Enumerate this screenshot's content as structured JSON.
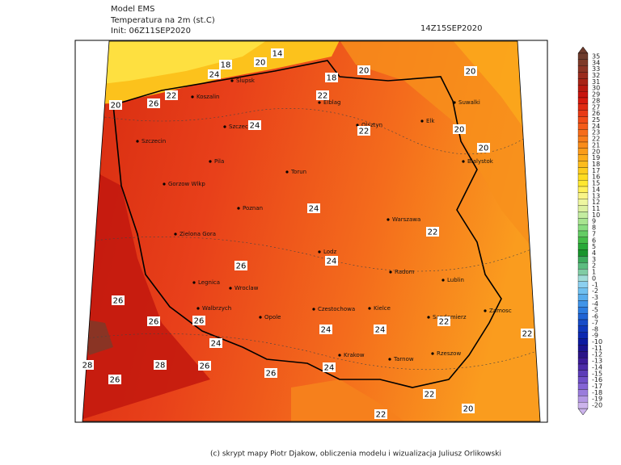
{
  "header": {
    "model": "Model EMS",
    "variable": "Temperatura na 2m (st.C)",
    "init": "Init: 06Z11SEP2020",
    "valid": "14Z15SEP2020"
  },
  "cities": [
    "Slupsk",
    "Koszalin",
    "Elblag",
    "Olsztyn",
    "Elk",
    "Suwalki",
    "Szczecinek",
    "Szczecin",
    "Bialystok",
    "Pila",
    "Torun",
    "Gorzow Wlkp",
    "Poznan",
    "Warszawa",
    "Zielona Gora",
    "Lodz",
    "Radom",
    "Lublin",
    "Legnica",
    "Wroclaw",
    "Walbrzych",
    "Czestochowa",
    "Kielce",
    "Sandomierz",
    "Zamosc",
    "Opole",
    "Krakow",
    "Tarnow",
    "Rzeszow"
  ],
  "contour_labels": [
    14,
    18,
    20,
    24,
    18,
    20,
    20,
    22,
    26,
    20,
    22,
    24,
    22,
    20,
    20,
    24,
    22,
    26,
    24,
    26,
    26,
    26,
    22,
    24,
    24,
    22,
    24,
    26,
    28,
    28,
    26,
    26,
    24,
    22,
    20,
    22
  ],
  "colorbar": {
    "levels": [
      35,
      34,
      33,
      32,
      31,
      30,
      29,
      28,
      27,
      26,
      25,
      24,
      23,
      22,
      21,
      20,
      19,
      18,
      17,
      16,
      15,
      14,
      13,
      12,
      11,
      10,
      9,
      8,
      7,
      6,
      5,
      4,
      3,
      2,
      1,
      0,
      -1,
      -2,
      -3,
      -4,
      -5,
      -6,
      -7,
      -8,
      -9,
      -10,
      -11,
      -12,
      -13,
      -14,
      -15,
      -16,
      -17,
      -18,
      -19,
      -20
    ],
    "colors": [
      "#6e3b2c",
      "#7e3a28",
      "#8c3424",
      "#9a2c1e",
      "#a82416",
      "#b81a10",
      "#c8140e",
      "#d61a0e",
      "#e02a12",
      "#e83a16",
      "#f04c18",
      "#f45c1a",
      "#f66c1a",
      "#f87c1a",
      "#fa8c1a",
      "#fb9c1a",
      "#fcac1a",
      "#fdbc1c",
      "#fdcc1e",
      "#fedc22",
      "#fee830",
      "#fef05a",
      "#f8f488",
      "#eef6a0",
      "#dcf0a0",
      "#c4eca0",
      "#a8e490",
      "#88dc80",
      "#64cc64",
      "#44bc48",
      "#28a838",
      "#18942c",
      "#3caa5c",
      "#5cbc80",
      "#80cca4",
      "#a0dcd8",
      "#8cd0f0",
      "#70c0f0",
      "#58acec",
      "#4094e8",
      "#2c7ce0",
      "#2064d4",
      "#184cc8",
      "#1038bc",
      "#0c28b0",
      "#0c1aa0",
      "#1a1490",
      "#2a1488",
      "#3c1c98",
      "#4c2ca8",
      "#5c3cb8",
      "#7050c8",
      "#8464d4",
      "#9a7cdc",
      "#b498e4",
      "#ccb4ec"
    ]
  },
  "footer": "(c) skrypt mapy Piotr Djakow, obliczenia modelu i wizualizacja Juliusz Orlikowski"
}
